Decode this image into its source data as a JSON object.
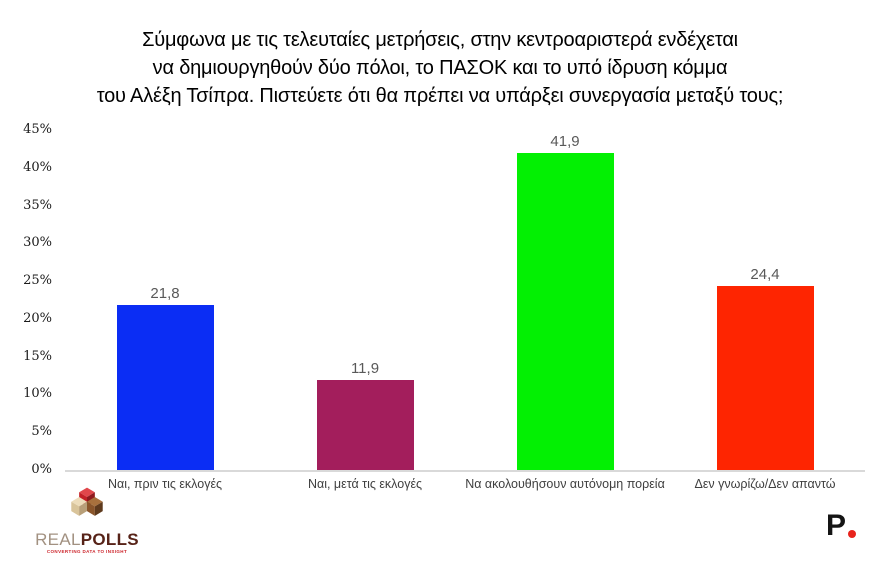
{
  "header": {
    "lines": [
      "Σύμφωνα με τις τελευταίες μετρήσεις, στην κεντροαριστερά ενδέχεται",
      "να δημιουργηθούν δύο πόλοι, το ΠΑΣΟΚ και το υπό ίδρυση κόμμα",
      "του Αλέξη Τσίπρα. Πιστεύετε ότι θα πρέπει να υπάρξει συνεργασία μεταξύ τους;"
    ]
  },
  "chart_data": {
    "type": "bar",
    "title": "Σύμφωνα με τις τελευταίες μετρήσεις, στην κεντροαριστερά ενδέχεται να δημιουργηθούν δύο πόλοι, το ΠΑΣΟΚ και το υπό ίδρυση κόμμα του Αλέξη Τσίπρα. Πιστεύετε ότι θα πρέπει να υπάρξει συνεργασία μεταξύ τους;",
    "categories": [
      "Ναι, πριν τις εκλογές",
      "Ναι, μετά τις εκλογές",
      "Να ακολουθήσουν  αυτόνομη πορεία",
      "Δεν γνωρίζω/Δεν απαντώ"
    ],
    "values": [
      21.8,
      11.9,
      41.9,
      24.4
    ],
    "value_labels": [
      "21,8",
      "11,9",
      "41,9",
      "24,4"
    ],
    "bar_colors": [
      "#0b2df4",
      "#a31e5c",
      "#03f003",
      "#fe2501"
    ],
    "xlabel": "",
    "ylabel": "",
    "ylim": [
      0,
      45
    ],
    "ytick_step": 5,
    "ytick_suffix": "%",
    "grid": false,
    "legend": false,
    "axis_line_color": "#d9d9d9",
    "value_label_color": "#595959"
  },
  "footer": {
    "realpolls": {
      "real": "REAL",
      "polls": "POLLS",
      "tagline": "CONVERTING DATA TO INSIGHT"
    },
    "parapolitika": {
      "letter": "P"
    }
  }
}
